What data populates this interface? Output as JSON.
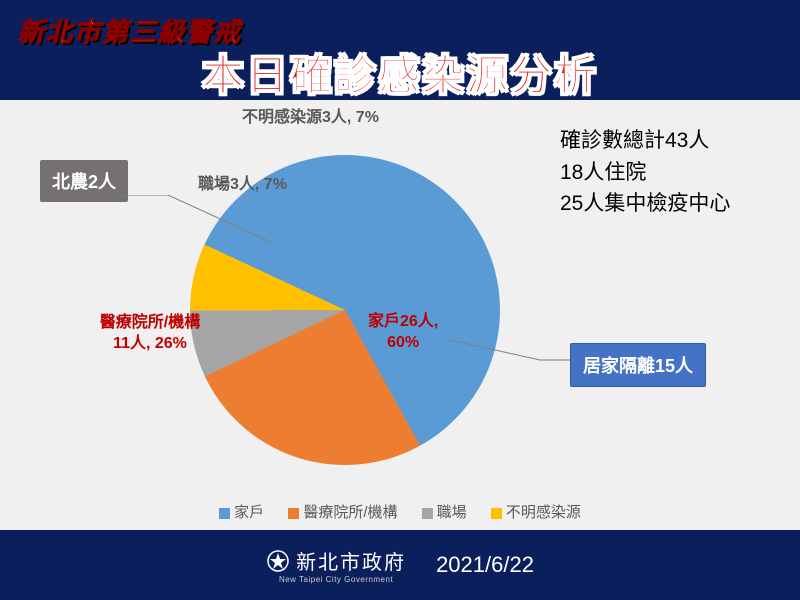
{
  "header": {
    "alert_line": "新北市第三級警戒"
  },
  "title": "本日確診感染源分析",
  "chart": {
    "type": "pie",
    "background_color": "#f0f0f0",
    "slices": [
      {
        "name": "家戶",
        "value": 26,
        "percent": 60,
        "color": "#5b9bd5",
        "label": "家戶26人,\n60%",
        "label_color": "#c00000"
      },
      {
        "name": "醫療院所/機構",
        "value": 11,
        "percent": 26,
        "color": "#ed7d31",
        "label": "醫療院所/機構\n11人, 26%",
        "label_color": "#c00000"
      },
      {
        "name": "職場",
        "value": 3,
        "percent": 7,
        "color": "#a5a5a5",
        "label": "職場3人, 7%",
        "label_color": "#595959"
      },
      {
        "name": "不明感染源",
        "value": 3,
        "percent": 7,
        "color": "#ffc000",
        "label": "不明感染源3人, 7%",
        "label_color": "#595959"
      }
    ],
    "start_angle_deg": -65,
    "label_fontsize": 16
  },
  "callouts": {
    "gray": {
      "text": "北農2人",
      "bg": "#767171"
    },
    "blue": {
      "text": "居家隔離15人",
      "bg": "#4472c4"
    }
  },
  "info": {
    "lines": [
      "確診數總計43人",
      "18人住院",
      "25人集中檢疫中心"
    ]
  },
  "legend": {
    "items": [
      "家戶",
      "醫療院所/機構",
      "職場",
      "不明感染源"
    ],
    "colors": [
      "#5b9bd5",
      "#ed7d31",
      "#a5a5a5",
      "#ffc000"
    ]
  },
  "footer": {
    "gov_name": "新北市政府",
    "gov_sub": "New Taipei City Government",
    "date": "2021/6/22"
  }
}
